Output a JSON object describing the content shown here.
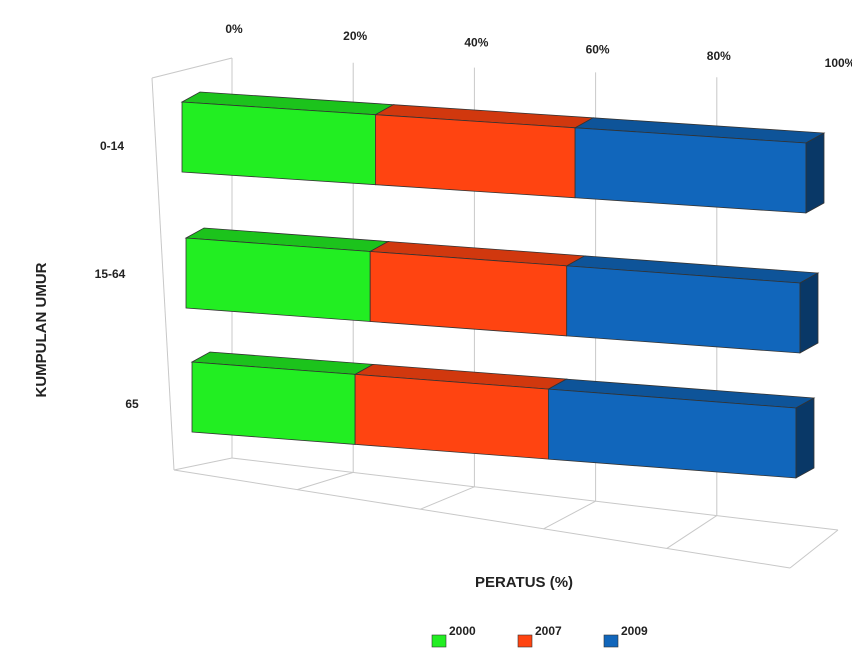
{
  "chart_data": {
    "type": "bar",
    "orientation": "horizontal",
    "stacked": "percent",
    "three_d": true,
    "categories": [
      "0-14",
      "15-64",
      "65"
    ],
    "series": [
      {
        "name": "2000",
        "color": "#22ee22",
        "values": [
          31,
          30,
          27
        ]
      },
      {
        "name": "2007",
        "color": "#ff4411",
        "values": [
          32,
          32,
          32
        ]
      },
      {
        "name": "2009",
        "color": "#1166bb",
        "values": [
          37,
          38,
          41
        ]
      }
    ],
    "xlabel": "PERATUS (%)",
    "ylabel": "KUMPULAN UMUR",
    "xticks": [
      "0%",
      "20%",
      "40%",
      "60%",
      "80%",
      "100%"
    ],
    "xlim": [
      0,
      100
    ],
    "grid": true,
    "legend": "bottom"
  }
}
